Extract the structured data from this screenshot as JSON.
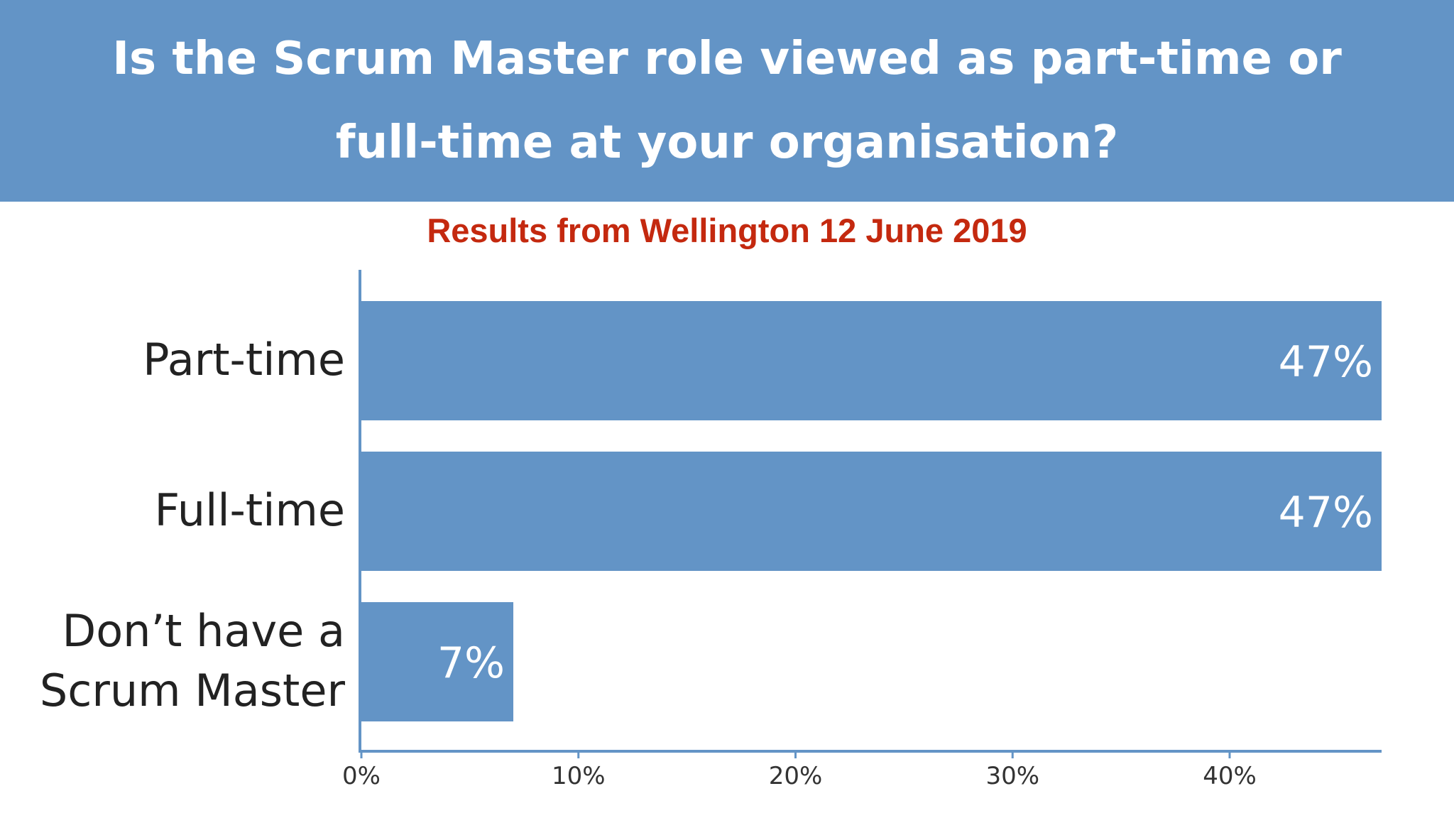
{
  "header": {
    "title": "Is the Scrum Master role viewed as part-time or full-time at your organisation?"
  },
  "subtitle": "Results from Wellington 12 June 2019",
  "colors": {
    "header_bg": "#6394c6",
    "bar": "#6394c6",
    "subtitle": "#c4290f",
    "axis": "#6394c6"
  },
  "chart_data": {
    "type": "bar",
    "orientation": "horizontal",
    "categories": [
      "Part-time",
      "Full-time",
      "Don’t have a Scrum Master"
    ],
    "category_lines": [
      [
        "Part-time"
      ],
      [
        "Full-time"
      ],
      [
        "Don’t have a",
        "Scrum Master"
      ]
    ],
    "values": [
      47,
      47,
      7
    ],
    "value_labels": [
      "47%",
      "47%",
      "7%"
    ],
    "x_ticks": [
      "0%",
      "10%",
      "20%",
      "30%",
      "40%"
    ],
    "x_tick_values": [
      0,
      10,
      20,
      30,
      40
    ],
    "xlim": [
      0,
      47
    ],
    "grid": false,
    "legend": "none"
  }
}
